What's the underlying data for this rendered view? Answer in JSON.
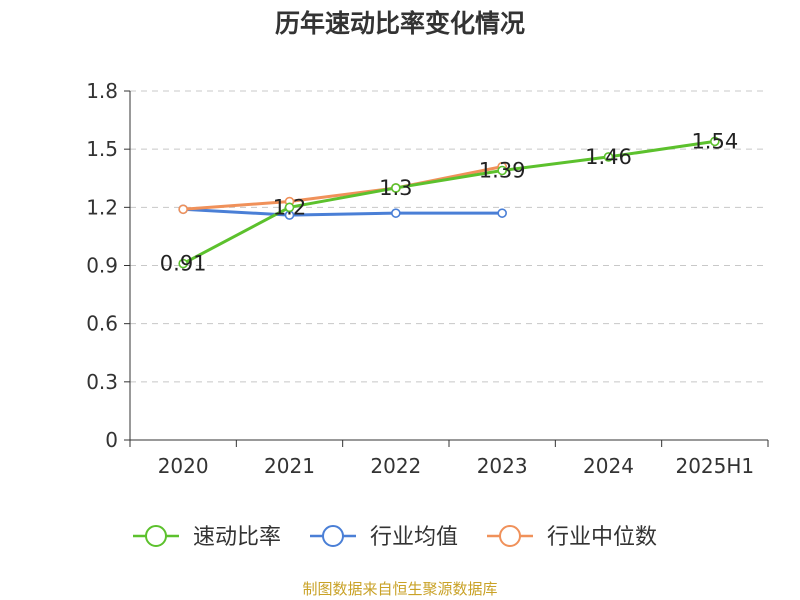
{
  "chart_data": {
    "type": "line",
    "title": "历年速动比率变化情况",
    "categories": [
      "2020",
      "2021",
      "2022",
      "2023",
      "2024",
      "2025H1"
    ],
    "yticks": [
      "0",
      "0.3",
      "0.6",
      "0.9",
      "1.2",
      "1.5",
      "1.8"
    ],
    "ylim": [
      0,
      1.8
    ],
    "grid": true,
    "legend_position": "bottom",
    "series": [
      {
        "name": "速动比率",
        "color": "#5cc12d",
        "values": [
          0.91,
          1.2,
          1.3,
          1.39,
          1.46,
          1.54
        ],
        "labels": [
          "0.91",
          "1.2",
          "1.3",
          "1.39",
          "1.46",
          "1.54"
        ]
      },
      {
        "name": "行业均值",
        "color": "#4a7fd6",
        "values": [
          1.19,
          1.16,
          1.17,
          1.17,
          null,
          null
        ]
      },
      {
        "name": "行业中位数",
        "color": "#f0915a",
        "values": [
          1.19,
          1.23,
          1.3,
          1.41,
          null,
          null
        ]
      }
    ]
  },
  "source": "制图数据来自恒生聚源数据库"
}
